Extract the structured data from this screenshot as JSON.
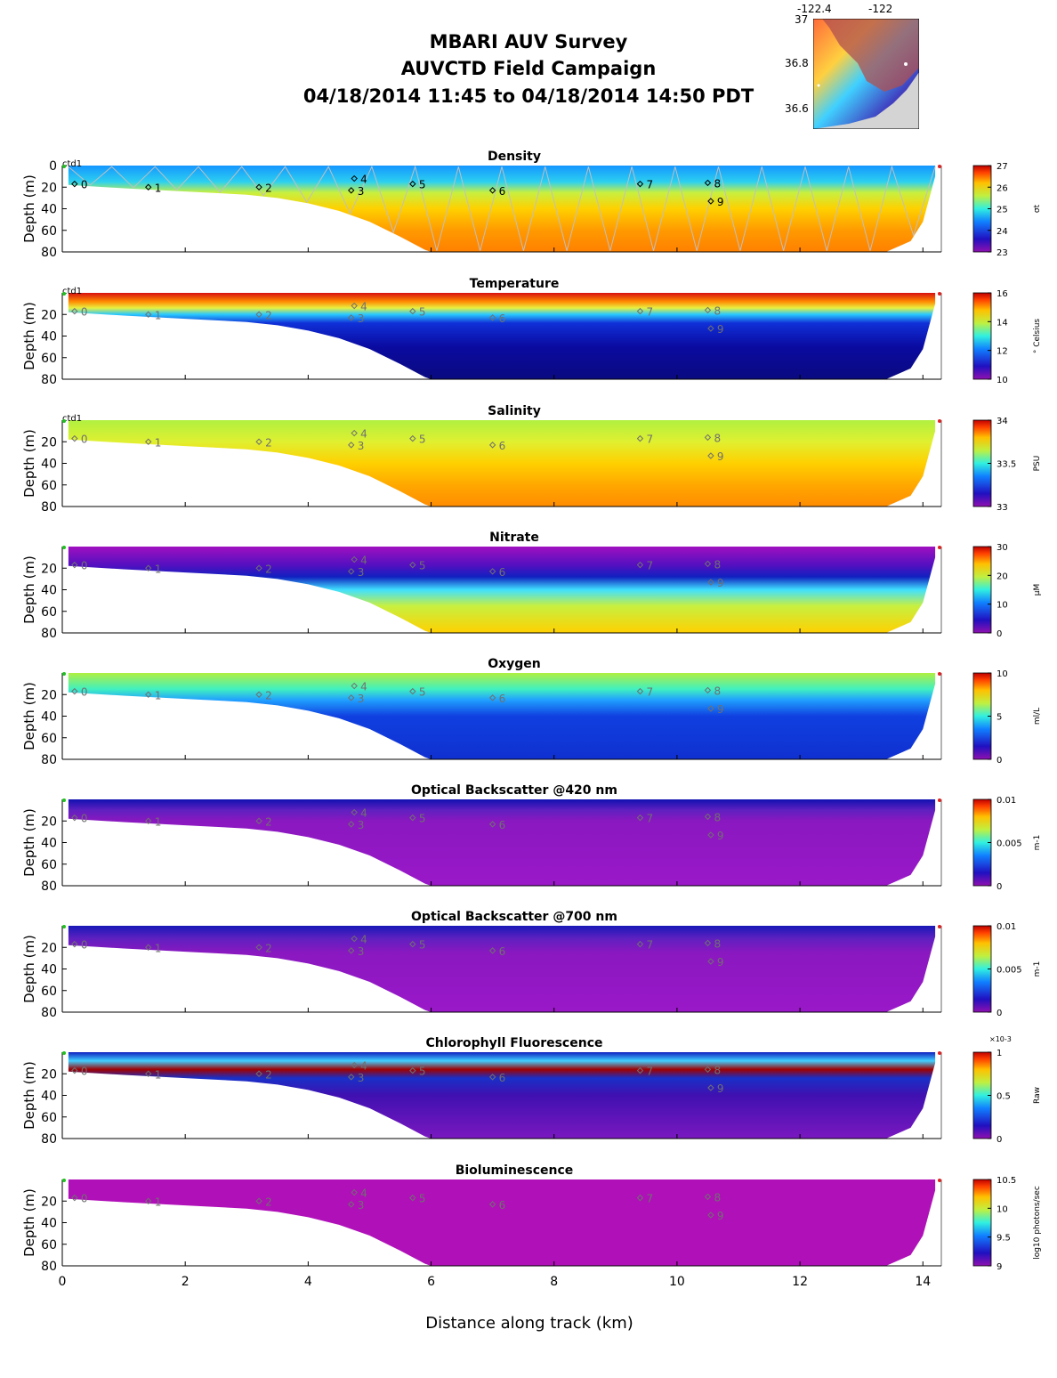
{
  "header": {
    "line1": "MBARI AUV Survey",
    "line2": "AUVCTD Field Campaign",
    "line3": "04/18/2014 11:45  to 04/18/2014 14:50 PDT"
  },
  "inset_map": {
    "lon_ticks": [
      "-122.4",
      "-122"
    ],
    "lat_ticks": [
      "37",
      "36.8",
      "36.6"
    ]
  },
  "x_axis": {
    "label": "Distance along track (km)",
    "ticks": [
      0,
      2,
      4,
      6,
      8,
      10,
      12,
      14
    ],
    "range": [
      0,
      14.3
    ]
  },
  "chart_data": {
    "type": "heatmap",
    "xlabel": "Distance along track (km)",
    "ylabel": "Depth (m)",
    "xlim": [
      0,
      14.3
    ],
    "ylim": [
      80,
      0
    ],
    "bottom_profile": {
      "x": [
        0.1,
        1,
        2,
        3,
        3.5,
        4,
        4.5,
        5,
        5.5,
        5.9,
        6.0,
        13.4,
        13.8,
        14.0,
        14.2
      ],
      "depth": [
        18,
        21,
        24,
        27,
        30,
        35,
        42,
        52,
        66,
        78,
        80,
        80,
        70,
        52,
        10
      ]
    },
    "waypoints": [
      {
        "label": "0",
        "x": 0.2,
        "depth": 17
      },
      {
        "label": "1",
        "x": 1.4,
        "depth": 20
      },
      {
        "label": "2",
        "x": 3.2,
        "depth": 20
      },
      {
        "label": "3",
        "x": 4.7,
        "depth": 23
      },
      {
        "label": "4",
        "x": 4.75,
        "depth": 12
      },
      {
        "label": "5",
        "x": 5.7,
        "depth": 17
      },
      {
        "label": "6",
        "x": 7.0,
        "depth": 23
      },
      {
        "label": "7",
        "x": 9.4,
        "depth": 17
      },
      {
        "label": "8",
        "x": 10.5,
        "depth": 16
      },
      {
        "label": "9",
        "x": 10.55,
        "depth": 33
      }
    ],
    "track_label": "ctd1",
    "panels": [
      {
        "name": "Density",
        "unit_label": "σt",
        "cbar_ticks": [
          "27",
          "26",
          "25",
          "24",
          "23"
        ],
        "cbar_exponent": "",
        "y_ticks": [
          "0",
          "20",
          "40",
          "60",
          "80"
        ],
        "track_label": true,
        "zigzag": true,
        "layers": [
          {
            "depth": 0,
            "color": "#1496ff"
          },
          {
            "depth": 15,
            "color": "#2cd0f0"
          },
          {
            "depth": 25,
            "color": "#c8f040"
          },
          {
            "depth": 40,
            "color": "#ffd000"
          },
          {
            "depth": 60,
            "color": "#ff9a00"
          },
          {
            "depth": 80,
            "color": "#ff8000"
          }
        ]
      },
      {
        "name": "Temperature",
        "unit_label": "° Celsius",
        "cbar_ticks": [
          "16",
          "14",
          "12",
          "10"
        ],
        "cbar_exponent": "",
        "y_ticks": [
          "20",
          "40",
          "60",
          "80"
        ],
        "track_label": true,
        "zigzag": false,
        "layers": [
          {
            "depth": 0,
            "color": "#d81010"
          },
          {
            "depth": 8,
            "color": "#ff8a00"
          },
          {
            "depth": 14,
            "color": "#e8f040"
          },
          {
            "depth": 20,
            "color": "#28c8ff"
          },
          {
            "depth": 28,
            "color": "#1030d8"
          },
          {
            "depth": 50,
            "color": "#0a0aa0"
          },
          {
            "depth": 80,
            "color": "#0a0a80"
          }
        ]
      },
      {
        "name": "Salinity",
        "unit_label": "PSU",
        "cbar_ticks": [
          "34",
          "33.5",
          "33"
        ],
        "cbar_exponent": "",
        "y_ticks": [
          "20",
          "40",
          "60",
          "80"
        ],
        "track_label": true,
        "zigzag": false,
        "layers": [
          {
            "depth": 0,
            "color": "#b0f040"
          },
          {
            "depth": 20,
            "color": "#e0f030"
          },
          {
            "depth": 40,
            "color": "#ffd000"
          },
          {
            "depth": 60,
            "color": "#ffa800"
          },
          {
            "depth": 80,
            "color": "#ff8c00"
          }
        ]
      },
      {
        "name": "Nitrate",
        "unit_label": "μM",
        "cbar_ticks": [
          "30",
          "20",
          "10",
          "0"
        ],
        "cbar_exponent": "",
        "y_ticks": [
          "20",
          "40",
          "60",
          "80"
        ],
        "track_label": false,
        "zigzag": false,
        "layers": [
          {
            "depth": 0,
            "color": "#a010c0"
          },
          {
            "depth": 18,
            "color": "#5010c0"
          },
          {
            "depth": 28,
            "color": "#1020c0"
          },
          {
            "depth": 40,
            "color": "#40e0ff"
          },
          {
            "depth": 55,
            "color": "#c8f040"
          },
          {
            "depth": 80,
            "color": "#ffd000"
          }
        ]
      },
      {
        "name": "Oxygen",
        "unit_label": "ml/L",
        "cbar_ticks": [
          "10",
          "5",
          "0"
        ],
        "cbar_exponent": "",
        "y_ticks": [
          "20",
          "40",
          "60",
          "80"
        ],
        "track_label": false,
        "zigzag": false,
        "layers": [
          {
            "depth": 0,
            "color": "#b0f040"
          },
          {
            "depth": 15,
            "color": "#40f0c0"
          },
          {
            "depth": 25,
            "color": "#20a0ff"
          },
          {
            "depth": 40,
            "color": "#1040e0"
          },
          {
            "depth": 80,
            "color": "#1030d0"
          }
        ]
      },
      {
        "name": "Optical Backscatter @420 nm",
        "unit_label": "m-1",
        "cbar_ticks": [
          "0.01",
          "0.005",
          "0"
        ],
        "cbar_exponent": "",
        "y_ticks": [
          "20",
          "40",
          "60",
          "80"
        ],
        "track_label": false,
        "zigzag": false,
        "layers": [
          {
            "depth": 0,
            "color": "#1010b0"
          },
          {
            "depth": 10,
            "color": "#6020c0"
          },
          {
            "depth": 20,
            "color": "#8a18c0"
          },
          {
            "depth": 80,
            "color": "#9a18c8"
          }
        ]
      },
      {
        "name": "Optical Backscatter @700 nm",
        "unit_label": "m-1",
        "cbar_ticks": [
          "0.01",
          "0.005",
          "0"
        ],
        "cbar_exponent": "",
        "y_ticks": [
          "20",
          "40",
          "60",
          "80"
        ],
        "track_label": false,
        "zigzag": false,
        "layers": [
          {
            "depth": 0,
            "color": "#1818b8"
          },
          {
            "depth": 12,
            "color": "#6020c0"
          },
          {
            "depth": 25,
            "color": "#8a18c0"
          },
          {
            "depth": 80,
            "color": "#9a18c8"
          }
        ]
      },
      {
        "name": "Chlorophyll Fluorescence",
        "unit_label": "Raw",
        "cbar_ticks": [
          "1",
          "0.5",
          "0"
        ],
        "cbar_exponent": "×10-3",
        "y_ticks": [
          "20",
          "40",
          "60",
          "80"
        ],
        "track_label": false,
        "zigzag": false,
        "layers": [
          {
            "depth": 0,
            "color": "#1020c0"
          },
          {
            "depth": 8,
            "color": "#40d0ff"
          },
          {
            "depth": 16,
            "color": "#a00000"
          },
          {
            "depth": 24,
            "color": "#1830c8"
          },
          {
            "depth": 40,
            "color": "#4010b0"
          },
          {
            "depth": 80,
            "color": "#7a18c0"
          }
        ]
      },
      {
        "name": "Bioluminescence",
        "unit_label": "log10 photons/sec",
        "cbar_ticks": [
          "10.5",
          "10",
          "9.5",
          "9"
        ],
        "cbar_exponent": "",
        "y_ticks": [
          "20",
          "40",
          "60",
          "80"
        ],
        "track_label": false,
        "zigzag": false,
        "layers": [
          {
            "depth": 0,
            "color": "#b010b8"
          },
          {
            "depth": 80,
            "color": "#b010b8"
          }
        ]
      }
    ]
  }
}
